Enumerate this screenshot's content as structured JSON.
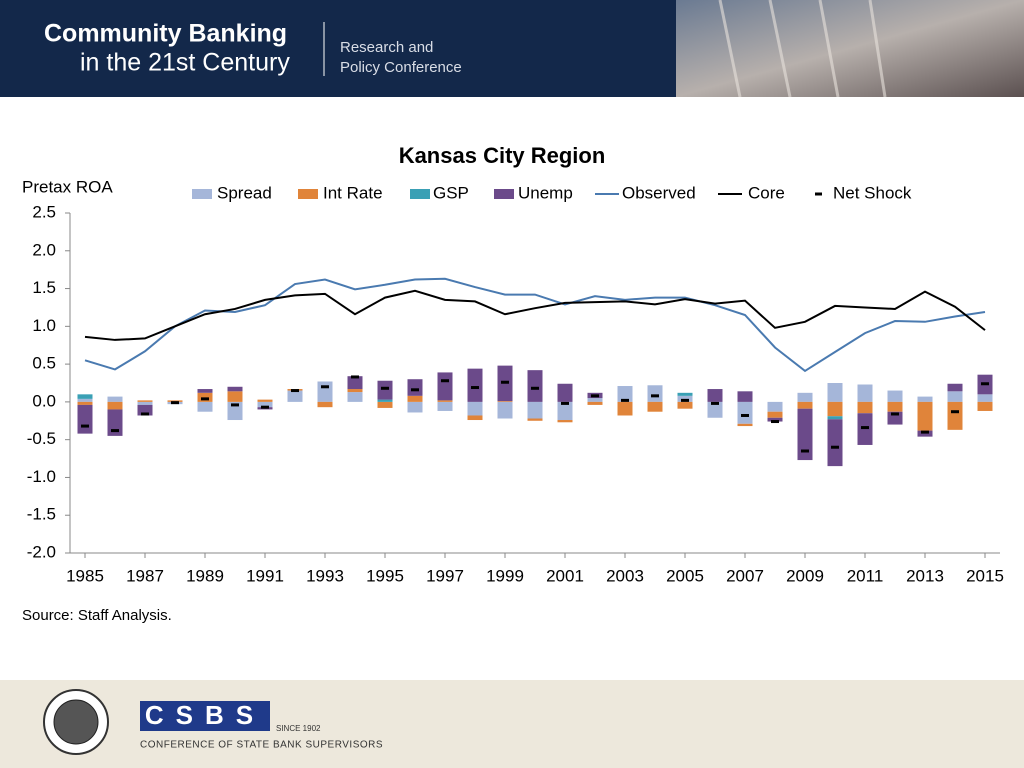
{
  "header": {
    "title_line1": "Community Banking",
    "title_line2": "in the 21st Century",
    "subtitle_line1": "Research and",
    "subtitle_line2": "Policy Conference"
  },
  "chart_data": {
    "type": "bar",
    "stacked": true,
    "title": "Kansas City Region",
    "y_label": "Pretax ROA",
    "x": [
      1985,
      1986,
      1987,
      1988,
      1989,
      1990,
      1991,
      1992,
      1993,
      1994,
      1995,
      1996,
      1997,
      1998,
      1999,
      2000,
      2001,
      2002,
      2003,
      2004,
      2005,
      2006,
      2007,
      2008,
      2009,
      2010,
      2011,
      2012,
      2013,
      2014,
      2015
    ],
    "xlim": [
      1984.5,
      2015.5
    ],
    "xticks": [
      1985,
      1987,
      1989,
      1991,
      1993,
      1995,
      1997,
      1999,
      2001,
      2003,
      2005,
      2007,
      2009,
      2011,
      2013,
      2015
    ],
    "ylim": [
      -2,
      2.5
    ],
    "yticks": [
      {
        "value": 2.5,
        "label": "2.5"
      },
      {
        "value": 2,
        "label": "2.0"
      },
      1.5,
      {
        "value": 1,
        "label": "1.0"
      },
      0.5,
      {
        "value": 0,
        "label": "0.0"
      },
      -0.5,
      {
        "value": -1,
        "label": "-1.0"
      },
      -1.5,
      {
        "value": -2,
        "label": "-2.0"
      }
    ],
    "series": [
      {
        "name": "Spread",
        "kind": "bar",
        "color": "#a5b6d9",
        "values": [
          0.04,
          0.07,
          -0.04,
          -0.03,
          -0.13,
          -0.24,
          -0.07,
          0.15,
          0.27,
          0.13,
          0,
          -0.14,
          -0.12,
          -0.18,
          -0.22,
          -0.22,
          -0.24,
          0.05,
          0.21,
          0.22,
          0.08,
          -0.21,
          -0.29,
          -0.13,
          0.12,
          0.25,
          0.23,
          0.15,
          0.07,
          0.14,
          0.1
        ]
      },
      {
        "name": "Int Rate",
        "kind": "bar",
        "color": "#e0843a",
        "values": [
          -0.04,
          -0.1,
          0.02,
          0.02,
          0.12,
          0.14,
          0.03,
          0.02,
          -0.07,
          0.04,
          -0.08,
          0.08,
          0.02,
          -0.06,
          0.01,
          -0.03,
          -0.03,
          -0.04,
          -0.18,
          -0.13,
          -0.09,
          0,
          -0.03,
          -0.08,
          -0.09,
          -0.19,
          -0.15,
          -0.13,
          -0.38,
          -0.37,
          -0.12
        ]
      },
      {
        "name": "GSP",
        "kind": "bar",
        "color": "#3aa0b5",
        "values": [
          0.06,
          0,
          0,
          0,
          0,
          0,
          0,
          0,
          0,
          0,
          0.03,
          0,
          0,
          0,
          0,
          0,
          0,
          0,
          0,
          0,
          0.04,
          0,
          0,
          0,
          0,
          -0.04,
          0,
          0,
          0,
          0,
          0
        ]
      },
      {
        "name": "Unemp",
        "kind": "bar",
        "color": "#6b4a8a",
        "values": [
          -0.38,
          -0.35,
          -0.14,
          0,
          0.05,
          0.06,
          -0.03,
          0,
          0,
          0.17,
          0.25,
          0.22,
          0.37,
          0.44,
          0.47,
          0.42,
          0.24,
          0.07,
          0,
          0,
          0,
          0.17,
          0.14,
          -0.05,
          -0.68,
          -0.62,
          -0.42,
          -0.17,
          -0.08,
          0.1,
          0.26
        ]
      },
      {
        "name": "Observed",
        "kind": "line",
        "color": "#4a7ab0",
        "values": [
          0.55,
          0.43,
          0.67,
          1.0,
          1.21,
          1.19,
          1.28,
          1.56,
          1.62,
          1.49,
          1.55,
          1.62,
          1.63,
          1.52,
          1.42,
          1.42,
          1.29,
          1.4,
          1.35,
          1.38,
          1.38,
          1.28,
          1.15,
          0.72,
          0.41,
          0.66,
          0.91,
          1.07,
          1.06,
          1.13,
          1.19
        ]
      },
      {
        "name": "Core",
        "kind": "line",
        "color": "#000000",
        "values": [
          0.86,
          0.82,
          0.84,
          1.0,
          1.16,
          1.23,
          1.35,
          1.41,
          1.43,
          1.16,
          1.38,
          1.47,
          1.35,
          1.33,
          1.16,
          1.24,
          1.31,
          1.32,
          1.33,
          1.29,
          1.36,
          1.3,
          1.34,
          0.98,
          1.06,
          1.27,
          1.25,
          1.23,
          1.46,
          1.26,
          0.95
        ]
      },
      {
        "name": "Net Shock",
        "kind": "marker",
        "color": "#000000",
        "values": [
          -0.32,
          -0.38,
          -0.16,
          -0.01,
          0.04,
          -0.04,
          -0.07,
          0.15,
          0.2,
          0.33,
          0.18,
          0.16,
          0.28,
          0.19,
          0.26,
          0.18,
          -0.02,
          0.08,
          0.02,
          0.08,
          0.02,
          -0.02,
          -0.18,
          -0.26,
          -0.65,
          -0.6,
          -0.34,
          -0.16,
          -0.4,
          -0.13,
          0.24
        ]
      }
    ]
  },
  "source": "Source: Staff Analysis.",
  "footer": {
    "org": "CSBS",
    "since": "SINCE 1902",
    "full_name": "CONFERENCE OF STATE BANK SUPERVISORS"
  }
}
